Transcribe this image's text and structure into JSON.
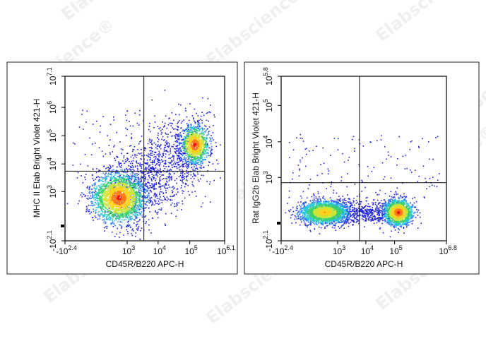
{
  "watermark": "Elabscience®",
  "colors": {
    "density": [
      "#1f1fe0",
      "#2a7bff",
      "#26c7d9",
      "#3ad070",
      "#c9e63a",
      "#ffd21f",
      "#ff7a1a",
      "#e8141a"
    ]
  },
  "chart_data": [
    {
      "type": "scatter",
      "title": "",
      "xlabel": "CD45R/B220 APC-H",
      "ylabel": "MHC II Elab Bright Violet 421-H",
      "x_scale": "biexponential",
      "y_scale": "biexponential",
      "xlim": [
        -251,
        1260000
      ],
      "ylim": [
        -126,
        12600000
      ],
      "x_ticks": [
        {
          "value": -251,
          "base": "-10",
          "exp": "2.4"
        },
        {
          "value": 1000,
          "base": "10",
          "exp": "3"
        },
        {
          "value": 10000,
          "base": "10",
          "exp": "4"
        },
        {
          "value": 100000,
          "base": "10",
          "exp": "5"
        },
        {
          "value": 1260000,
          "base": "10",
          "exp": "6.1"
        }
      ],
      "y_ticks": [
        {
          "value": -126,
          "base": "-10",
          "exp": "2.1"
        },
        {
          "value": 1000,
          "base": "10",
          "exp": "3"
        },
        {
          "value": 10000,
          "base": "10",
          "exp": "4"
        },
        {
          "value": 100000,
          "base": "10",
          "exp": "5"
        },
        {
          "value": 1000000,
          "base": "10",
          "exp": "6"
        },
        {
          "value": 12600000,
          "base": "10",
          "exp": "7.1"
        }
      ],
      "gate": {
        "x": 3500,
        "y": 5500
      },
      "populations": [
        {
          "name": "",
          "x": 500,
          "y": 600,
          "fraction": 0.62,
          "peak": "high"
        },
        {
          "name": "",
          "x": 140000,
          "y": 50000,
          "fraction": 0.28,
          "peak": "high"
        }
      ],
      "grid": false,
      "legend": "none"
    },
    {
      "type": "scatter",
      "title": "",
      "xlabel": "CD45R/B220 APC-H",
      "ylabel": "Rat IgG2b Elab Bright Violet 421-H",
      "x_scale": "biexponential",
      "y_scale": "biexponential",
      "xlim": [
        -251,
        6310000
      ],
      "ylim": [
        -126,
        631000
      ],
      "x_ticks": [
        {
          "value": -251,
          "base": "-10",
          "exp": "2.4"
        },
        {
          "value": 1000,
          "base": "10",
          "exp": "3"
        },
        {
          "value": 10000,
          "base": "10",
          "exp": "4"
        },
        {
          "value": 100000,
          "base": "10",
          "exp": "5"
        },
        {
          "value": 6310000,
          "base": "10",
          "exp": "6.8"
        }
      ],
      "y_ticks": [
        {
          "value": -126,
          "base": "-10",
          "exp": "2.1"
        },
        {
          "value": 1000,
          "base": "10",
          "exp": "3"
        },
        {
          "value": 10000,
          "base": "10",
          "exp": "4"
        },
        {
          "value": 100000,
          "base": "10",
          "exp": "5"
        },
        {
          "value": 631000,
          "base": "10",
          "exp": "5.8"
        }
      ],
      "gate": {
        "x": 6000,
        "y": 700
      },
      "populations": [
        {
          "name": "",
          "x": 300,
          "y": 60,
          "fraction": 0.55,
          "peak": "medium"
        },
        {
          "name": "",
          "x": 130000,
          "y": 60,
          "fraction": 0.38,
          "peak": "high"
        }
      ],
      "grid": false,
      "legend": "none"
    }
  ]
}
